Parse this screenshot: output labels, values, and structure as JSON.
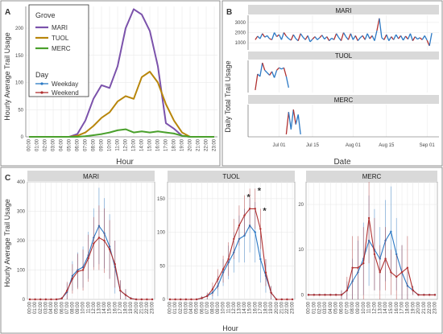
{
  "panels": {
    "A": {
      "letter": "A",
      "ylabel": "Hourly Average Trail Usage",
      "xlabel": "Hour",
      "legend_title_grove": "Grove",
      "legend_title_day": "Day"
    },
    "B": {
      "letter": "B",
      "ylabel": "Daily Total Trail Usage",
      "xlabel": "Date"
    },
    "C": {
      "letter": "C",
      "ylabel": "Hourly Average Trail Usage",
      "xlabel": "Hour"
    }
  },
  "colors": {
    "MARI": "#7b52ab",
    "TUOL": "#b8860b",
    "MERC": "#4aa02c",
    "Weekday": "#2a78c4",
    "Weekend": "#b03030",
    "strip": "#d9d9d9",
    "grid": "#e6e6e6"
  },
  "chart_data": [
    {
      "id": "A",
      "type": "line",
      "xlabel": "Hour",
      "ylabel": "Hourly Average Trail Usage",
      "categories": [
        "00:00",
        "01:00",
        "02:00",
        "03:00",
        "04:00",
        "05:00",
        "06:00",
        "07:00",
        "08:00",
        "09:00",
        "10:00",
        "11:00",
        "12:00",
        "13:00",
        "14:00",
        "15:00",
        "16:00",
        "17:00",
        "18:00",
        "19:00",
        "20:00",
        "21:00",
        "22:00",
        "23:00"
      ],
      "ylim": [
        0,
        240
      ],
      "yticks": [
        0,
        50,
        100,
        150,
        200
      ],
      "grid": true,
      "legend": "top-left",
      "series": [
        {
          "name": "MARI",
          "values": [
            0,
            0,
            0,
            0,
            0,
            0,
            5,
            30,
            70,
            95,
            90,
            130,
            200,
            235,
            225,
            195,
            130,
            25,
            15,
            2,
            0,
            0,
            0,
            0
          ]
        },
        {
          "name": "TUOL",
          "values": [
            0,
            0,
            0,
            0,
            0,
            0,
            2,
            8,
            20,
            35,
            45,
            65,
            75,
            70,
            110,
            120,
            100,
            60,
            30,
            8,
            0,
            0,
            0,
            0
          ]
        },
        {
          "name": "MERC",
          "values": [
            0,
            0,
            0,
            0,
            0,
            0,
            0,
            1,
            3,
            5,
            8,
            12,
            14,
            8,
            10,
            8,
            10,
            8,
            6,
            2,
            0,
            0,
            0,
            0
          ]
        }
      ],
      "legend_day": [
        "Weekday",
        "Weekend"
      ]
    },
    {
      "id": "B",
      "type": "line",
      "xlabel": "Date",
      "ylabel": "Daily Total Trail Usage",
      "x_ticks": [
        "Jul 01",
        "Jul 15",
        "Aug 01",
        "Aug 15",
        "Sep 01"
      ],
      "facets": [
        {
          "title": "MARI",
          "yticks": [
            1000,
            2000,
            3000
          ],
          "ylim": [
            300,
            3700
          ],
          "points": [
            [
              "Jun 21",
              1300
            ],
            [
              "Jun 22",
              1650
            ],
            [
              "Jun 23",
              1400
            ],
            [
              "Jun 24",
              1900
            ],
            [
              "Jun 25",
              1550
            ],
            [
              "Jun 26",
              1700
            ],
            [
              "Jun 27",
              1400
            ],
            [
              "Jun 28",
              1300
            ],
            [
              "Jun 29",
              2000
            ],
            [
              "Jun 30",
              1600
            ],
            [
              "Jul 01",
              1800
            ],
            [
              "Jul 02",
              1300
            ],
            [
              "Jul 03",
              2000
            ],
            [
              "Jul 04",
              1650
            ],
            [
              "Jul 05",
              1400
            ],
            [
              "Jul 06",
              1250
            ],
            [
              "Jul 07",
              1800
            ],
            [
              "Jul 08",
              1400
            ],
            [
              "Jul 09",
              1200
            ],
            [
              "Jul 10",
              1900
            ],
            [
              "Jul 11",
              1550
            ],
            [
              "Jul 12",
              1300
            ],
            [
              "Jul 13",
              1700
            ],
            [
              "Jul 14",
              1100
            ],
            [
              "Jul 15",
              1350
            ],
            [
              "Jul 16",
              1600
            ],
            [
              "Jul 17",
              1300
            ],
            [
              "Jul 18",
              1500
            ],
            [
              "Jul 19",
              1750
            ],
            [
              "Jul 20",
              1350
            ],
            [
              "Jul 21",
              1600
            ],
            [
              "Jul 22",
              1200
            ],
            [
              "Jul 23",
              1450
            ],
            [
              "Jul 24",
              1300
            ],
            [
              "Jul 25",
              1900
            ],
            [
              "Jul 26",
              1500
            ],
            [
              "Jul 27",
              1200
            ],
            [
              "Jul 28",
              2000
            ],
            [
              "Jul 29",
              1600
            ],
            [
              "Jul 30",
              1300
            ],
            [
              "Jul 31",
              1900
            ],
            [
              "Aug 01",
              1300
            ],
            [
              "Aug 02",
              1700
            ],
            [
              "Aug 03",
              1200
            ],
            [
              "Aug 04",
              1500
            ],
            [
              "Aug 05",
              1700
            ],
            [
              "Aug 06",
              1300
            ],
            [
              "Aug 07",
              1900
            ],
            [
              "Aug 08",
              1400
            ],
            [
              "Aug 09",
              1700
            ],
            [
              "Aug 10",
              1200
            ],
            [
              "Aug 11",
              2200
            ],
            [
              "Aug 12",
              3400
            ],
            [
              "Aug 13",
              1500
            ],
            [
              "Aug 14",
              1300
            ],
            [
              "Aug 15",
              1800
            ],
            [
              "Aug 16",
              1200
            ],
            [
              "Aug 17",
              1600
            ],
            [
              "Aug 18",
              1300
            ],
            [
              "Aug 19",
              1800
            ],
            [
              "Aug 20",
              1400
            ],
            [
              "Aug 21",
              1700
            ],
            [
              "Aug 22",
              1250
            ],
            [
              "Aug 23",
              1650
            ],
            [
              "Aug 24",
              1350
            ],
            [
              "Aug 25",
              1900
            ],
            [
              "Aug 26",
              1200
            ],
            [
              "Aug 27",
              1600
            ],
            [
              "Aug 28",
              1350
            ],
            [
              "Aug 29",
              1500
            ],
            [
              "Aug 30",
              1300
            ],
            [
              "Aug 31",
              1700
            ],
            [
              "Sep 01",
              1250
            ],
            [
              "Sep 02",
              700
            ],
            [
              "Sep 03",
              1950
            ]
          ]
        },
        {
          "title": "TUOL",
          "yticks": [],
          "ylim": [
            0,
            1300
          ],
          "points": [
            [
              "Jun 21",
              100
            ],
            [
              "Jun 22",
              750
            ],
            [
              "Jun 23",
              650
            ],
            [
              "Jun 24",
              1200
            ],
            [
              "Jun 25",
              900
            ],
            [
              "Jun 26",
              800
            ],
            [
              "Jun 27",
              700
            ],
            [
              "Jun 28",
              850
            ],
            [
              "Jun 29",
              600
            ],
            [
              "Jun 30",
              900
            ],
            [
              "Jul 01",
              1000
            ],
            [
              "Jul 02",
              950
            ],
            [
              "Jul 03",
              1000
            ],
            [
              "Jul 04",
              650
            ],
            [
              "Jul 05",
              200
            ]
          ]
        },
        {
          "title": "MERC",
          "yticks": [],
          "ylim": [
            0,
            1300
          ],
          "points": [
            [
              "Jul 04",
              100
            ],
            [
              "Jul 05",
              1000
            ],
            [
              "Jul 06",
              300
            ],
            [
              "Jul 07",
              1100
            ],
            [
              "Jul 08",
              500
            ],
            [
              "Jul 09",
              900
            ],
            [
              "Jul 10",
              100
            ]
          ]
        }
      ]
    },
    {
      "id": "C",
      "type": "line",
      "xlabel": "Hour",
      "ylabel": "Hourly Average Trail Usage",
      "categories": [
        "00:00",
        "01:00",
        "02:00",
        "03:00",
        "04:00",
        "05:00",
        "06:00",
        "07:00",
        "08:00",
        "09:00",
        "10:00",
        "11:00",
        "12:00",
        "13:00",
        "14:00",
        "15:00",
        "16:00",
        "17:00",
        "18:00",
        "19:00",
        "20:00",
        "21:00",
        "22:00",
        "23:00"
      ],
      "facets": [
        {
          "title": "MARI",
          "ylim": [
            0,
            400
          ],
          "yticks": [
            0,
            100,
            200,
            300,
            400
          ],
          "series": [
            {
              "name": "Weekday",
              "values": [
                0,
                0,
                0,
                0,
                0,
                0,
                3,
                25,
                80,
                100,
                110,
                150,
                210,
                250,
                225,
                180,
                110,
                30,
                15,
                3,
                0,
                0,
                0,
                0
              ],
              "err": [
                0,
                0,
                0,
                0,
                0,
                0,
                5,
                30,
                50,
                60,
                70,
                80,
                100,
                130,
                120,
                110,
                90,
                35,
                20,
                5,
                0,
                0,
                0,
                0
              ]
            },
            {
              "name": "Weekend",
              "values": [
                0,
                0,
                0,
                0,
                0,
                0,
                3,
                30,
                70,
                95,
                100,
                140,
                190,
                210,
                200,
                170,
                120,
                30,
                15,
                3,
                0,
                0,
                0,
                0
              ],
              "err": [
                0,
                0,
                0,
                0,
                0,
                0,
                5,
                30,
                50,
                60,
                70,
                80,
                90,
                110,
                110,
                100,
                80,
                35,
                20,
                5,
                0,
                0,
                0,
                0
              ]
            }
          ]
        },
        {
          "title": "TUOL",
          "ylim": [
            0,
            175
          ],
          "yticks": [
            0,
            50,
            100,
            150
          ],
          "annotations": [
            {
              "x": "14:00",
              "text": "*"
            },
            {
              "x": "16:00",
              "text": "*"
            },
            {
              "x": "17:00",
              "text": "*"
            }
          ],
          "series": [
            {
              "name": "Weekday",
              "values": [
                0,
                0,
                0,
                0,
                0,
                0,
                2,
                5,
                10,
                20,
                40,
                55,
                70,
                90,
                95,
                110,
                100,
                60,
                35,
                10,
                0,
                0,
                0,
                0
              ],
              "err": [
                0,
                0,
                0,
                0,
                0,
                0,
                3,
                5,
                10,
                15,
                20,
                25,
                30,
                35,
                40,
                40,
                45,
                35,
                25,
                10,
                0,
                0,
                0,
                0
              ]
            },
            {
              "name": "Weekend",
              "values": [
                0,
                0,
                0,
                0,
                0,
                0,
                2,
                5,
                15,
                30,
                45,
                60,
                90,
                110,
                125,
                135,
                135,
                105,
                40,
                10,
                0,
                0,
                0,
                0
              ],
              "err": [
                0,
                0,
                0,
                0,
                0,
                0,
                3,
                5,
                10,
                15,
                20,
                25,
                30,
                30,
                30,
                30,
                30,
                30,
                20,
                10,
                0,
                0,
                0,
                0
              ]
            }
          ]
        },
        {
          "title": "MERC",
          "ylim": [
            -1,
            25
          ],
          "yticks": [
            0,
            10,
            20
          ],
          "series": [
            {
              "name": "Weekday",
              "values": [
                0,
                0,
                0,
                0,
                0,
                0,
                0,
                1,
                3,
                5,
                8,
                12,
                10,
                8,
                12,
                14,
                9,
                5,
                2,
                1,
                0,
                0,
                0,
                0
              ],
              "err": [
                0,
                0,
                0,
                0,
                0,
                0,
                1,
                2,
                5,
                7,
                8,
                10,
                9,
                7,
                9,
                10,
                8,
                6,
                3,
                1,
                0,
                0,
                0,
                0
              ]
            },
            {
              "name": "Weekend",
              "values": [
                0,
                0,
                0,
                0,
                0,
                0,
                0,
                1,
                6,
                6,
                7,
                17,
                9,
                5,
                8,
                5,
                4,
                5,
                6,
                1,
                0,
                0,
                0,
                0
              ],
              "err": [
                0,
                0,
                0,
                0,
                0,
                0,
                1,
                3,
                7,
                7,
                8,
                10,
                8,
                6,
                7,
                5,
                5,
                6,
                7,
                1,
                0,
                0,
                0,
                0
              ]
            }
          ]
        }
      ]
    }
  ]
}
